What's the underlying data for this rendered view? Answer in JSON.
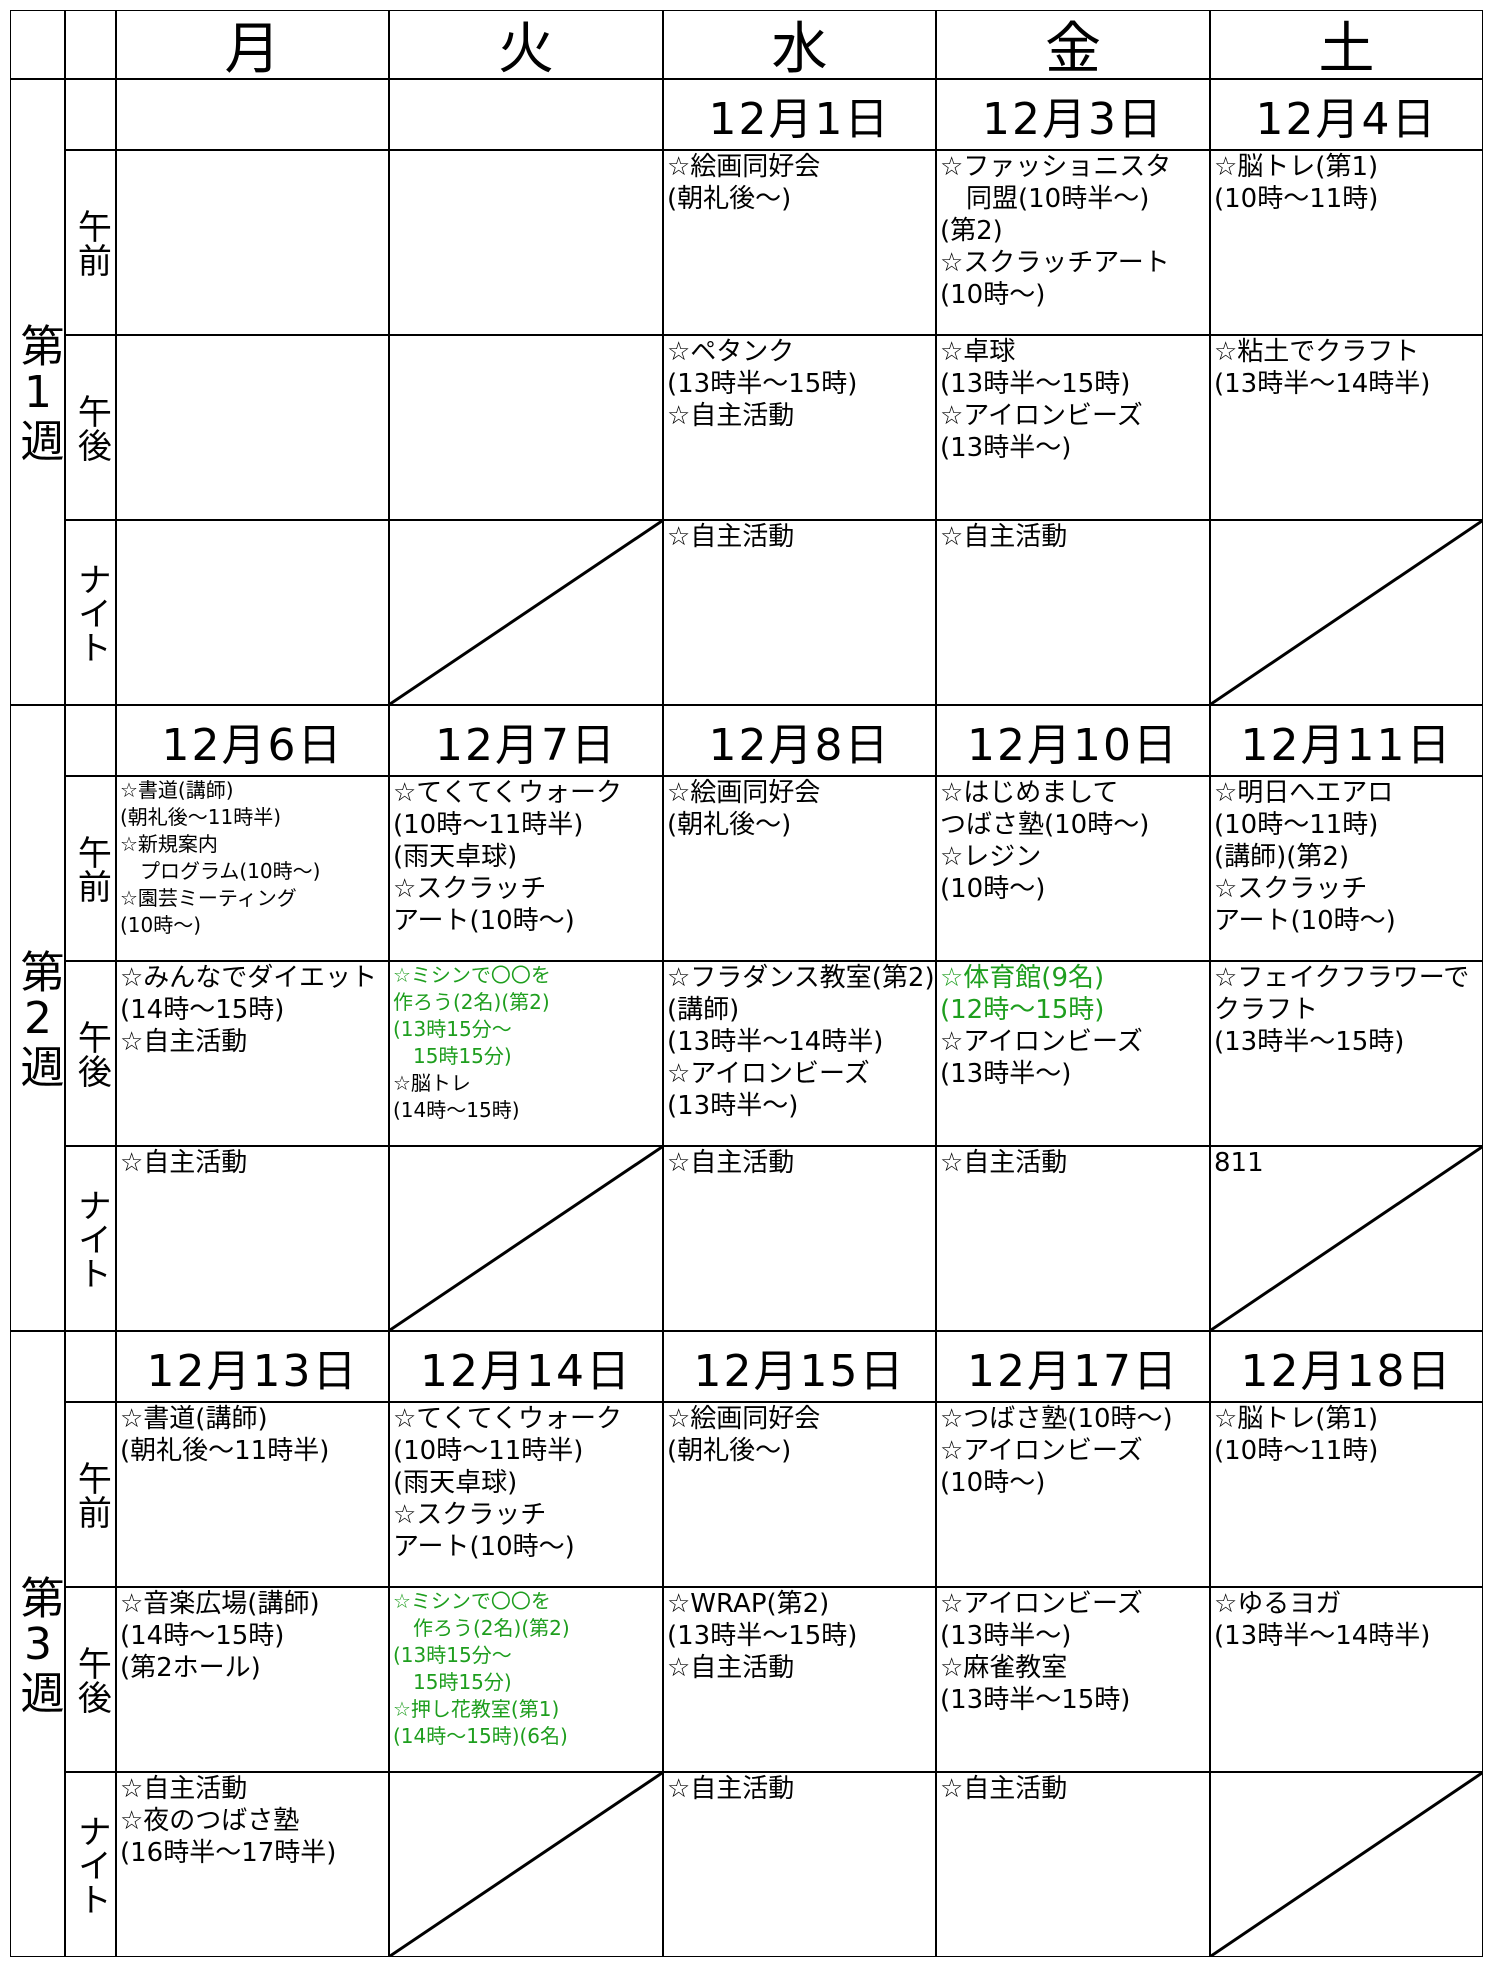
{
  "header": {
    "days": [
      "月",
      "火",
      "水",
      "金",
      "土"
    ]
  },
  "periods": [
    "午前",
    "午後",
    "ナイト"
  ],
  "weeks": [
    {
      "label": "第1週",
      "dates": [
        null,
        null,
        "12月1日",
        "12月3日",
        "12月4日"
      ],
      "slots": [
        [
          [],
          [],
          [
            "☆絵画同好会",
            "(朝礼後～)"
          ],
          [
            "☆ファッショニスタ",
            "　同盟(10時半～)",
            "(第2)",
            "☆スクラッチアート",
            "(10時～)"
          ],
          [
            "☆脳トレ(第1)",
            "(10時～11時)"
          ]
        ],
        [
          [],
          [],
          [
            "☆ペタンク",
            "(13時半～15時)",
            "☆自主活動"
          ],
          [
            "☆卓球",
            "(13時半～15時)",
            "☆アイロンビーズ",
            "(13時半～)"
          ],
          [
            "☆粘土でクラフト",
            "(13時半～14時半)"
          ]
        ],
        [
          [],
          [],
          [
            "☆自主活動"
          ],
          [
            "☆自主活動"
          ],
          []
        ]
      ]
    },
    {
      "label": "第2週",
      "dates": [
        "12月6日",
        "12月7日",
        "12月8日",
        "12月10日",
        "12月11日"
      ],
      "slots": [
        [
          [
            "☆書道(講師)",
            "(朝礼後～11時半)",
            "☆新規案内",
            "　プログラム(10時～)",
            "☆園芸ミーティング",
            "(10時～)"
          ],
          [
            "☆てくてくウォーク",
            "(10時～11時半)",
            "(雨天卓球)",
            "☆スクラッチ",
            "アート(10時～)"
          ],
          [
            "☆絵画同好会",
            "(朝礼後～)"
          ],
          [
            "☆はじめまして",
            "つばさ塾(10時～)",
            "☆レジン",
            "(10時～)"
          ],
          [
            "☆明日へエアロ",
            "(10時～11時)",
            "(講師)(第2)",
            "☆スクラッチ",
            "アート(10時～)"
          ]
        ],
        [
          [
            "☆みんなでダイエット",
            "(14時～15時)",
            "☆自主活動"
          ],
          [
            {
              "text": "☆ミシンで〇〇を",
              "color": "#1e9e1e"
            },
            {
              "text": "作ろう(2名)(第2)",
              "color": "#1e9e1e"
            },
            {
              "text": "(13時15分～",
              "color": "#1e9e1e"
            },
            {
              "text": "　15時15分)",
              "color": "#1e9e1e"
            },
            "☆脳トレ",
            "(14時～15時)"
          ],
          [
            "☆フラダンス教室(第2)",
            "(講師)",
            "(13時半～14時半)",
            "☆アイロンビーズ",
            "(13時半～)"
          ],
          [
            {
              "text": "☆体育館(9名)",
              "color": "#1e9e1e"
            },
            {
              "text": "(12時～15時)",
              "color": "#1e9e1e"
            },
            "☆アイロンビーズ",
            "(13時半～)"
          ],
          [
            "☆フェイクフラワーで",
            "クラフト",
            "(13時半～15時)"
          ]
        ],
        [
          [
            "☆自主活動"
          ],
          [],
          [
            "☆自主活動"
          ],
          [
            "☆自主活動"
          ],
          [
            "811"
          ]
        ]
      ]
    },
    {
      "label": "第3週",
      "dates": [
        "12月13日",
        "12月14日",
        "12月15日",
        "12月17日",
        "12月18日"
      ],
      "slots": [
        [
          [
            "☆書道(講師)",
            "(朝礼後～11時半)"
          ],
          [
            "☆てくてくウォーク",
            "(10時～11時半)",
            "(雨天卓球)",
            "☆スクラッチ",
            "アート(10時～)"
          ],
          [
            "☆絵画同好会",
            "(朝礼後～)"
          ],
          [
            "☆つばさ塾(10時～)",
            "☆アイロンビーズ",
            "(10時～)"
          ],
          [
            "☆脳トレ(第1)",
            "(10時～11時)"
          ]
        ],
        [
          [
            "☆音楽広場(講師)",
            "(14時～15時)",
            "(第2ホール)"
          ],
          [
            {
              "text": "☆ミシンで〇〇を",
              "color": "#1e9e1e"
            },
            {
              "text": "　作ろう(2名)(第2)",
              "color": "#1e9e1e"
            },
            {
              "text": "(13時15分～",
              "color": "#1e9e1e"
            },
            {
              "text": "　15時15分)",
              "color": "#1e9e1e"
            },
            {
              "text": "☆押し花教室(第1)",
              "color": "#1e9e1e"
            },
            {
              "text": "(14時～15時)(6名)",
              "color": "#1e9e1e"
            }
          ],
          [
            "☆WRAP(第2)",
            "(13時半～15時)",
            "☆自主活動"
          ],
          [
            "☆アイロンビーズ",
            "(13時半～)",
            "☆麻雀教室",
            "(13時半～15時)"
          ],
          [
            "☆ゆるヨガ",
            "(13時半～14時半)"
          ]
        ],
        [
          [
            "☆自主活動",
            "☆夜のつばさ塾",
            "(16時半～17時半)"
          ],
          [],
          [
            "☆自主活動"
          ],
          [
            "☆自主活動"
          ],
          []
        ]
      ]
    }
  ]
}
